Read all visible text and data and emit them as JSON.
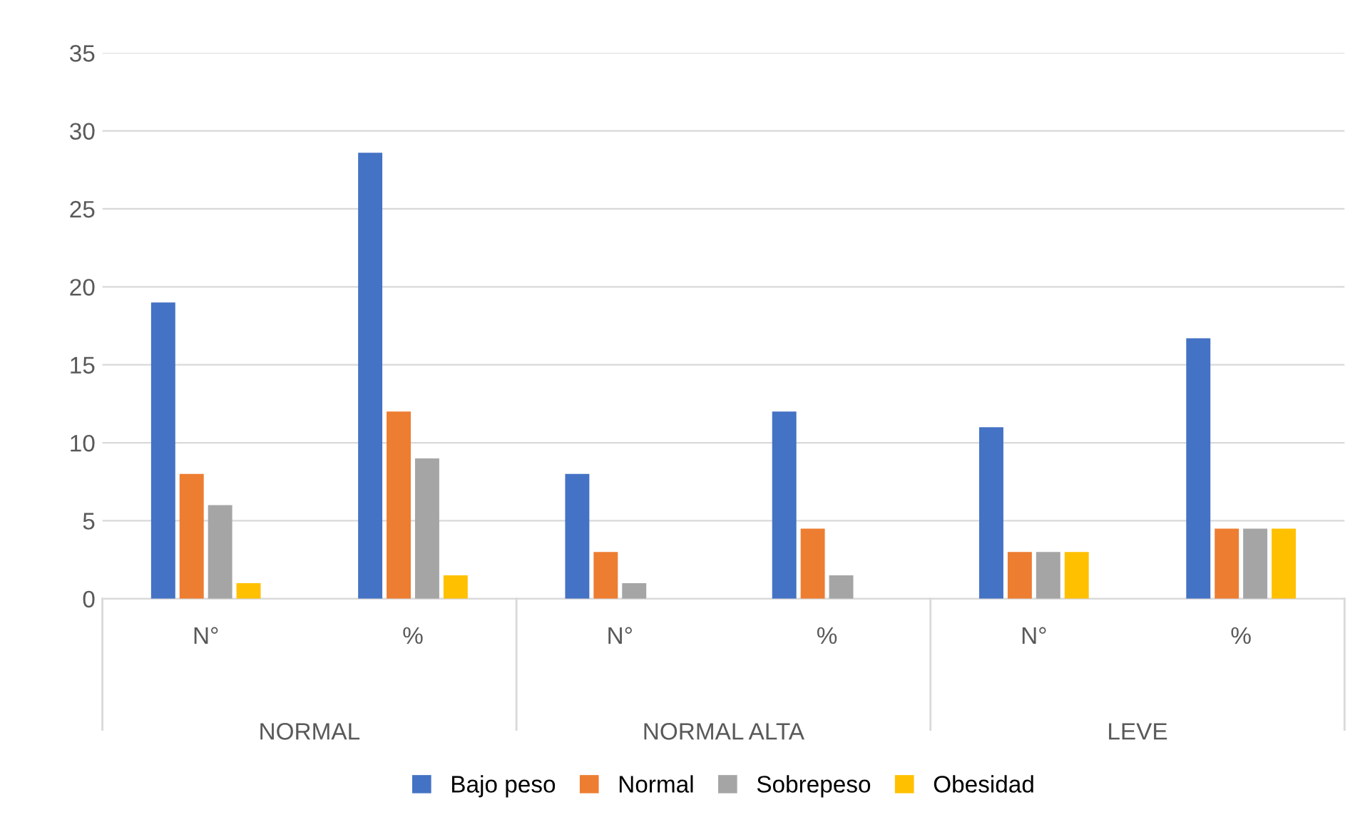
{
  "chart_data": {
    "type": "bar",
    "categories": [
      "N°",
      "%",
      "N°",
      "%",
      "N°",
      "%"
    ],
    "series": [
      {
        "name": "Bajo peso",
        "color": "#4472c4",
        "values": [
          19,
          28.6,
          8,
          12,
          11,
          16.7
        ]
      },
      {
        "name": "Normal",
        "color": "#ed7d31",
        "values": [
          8,
          12,
          3,
          4.5,
          3,
          4.5
        ]
      },
      {
        "name": "Sobrepeso",
        "color": "#a5a5a5",
        "values": [
          6,
          9,
          1,
          1.5,
          3,
          4.5
        ]
      },
      {
        "name": "Obesidad",
        "color": "#ffc000",
        "values": [
          1,
          1.5,
          null,
          null,
          3,
          4.5
        ]
      }
    ],
    "annotations": [
      "NORMAL",
      "NORMAL ALTA",
      "LEVE"
    ],
    "ylim": [
      0,
      35
    ],
    "yticks": [
      0,
      5,
      10,
      15,
      20,
      25,
      30,
      35
    ],
    "grid": "y",
    "legend": "bottom"
  }
}
